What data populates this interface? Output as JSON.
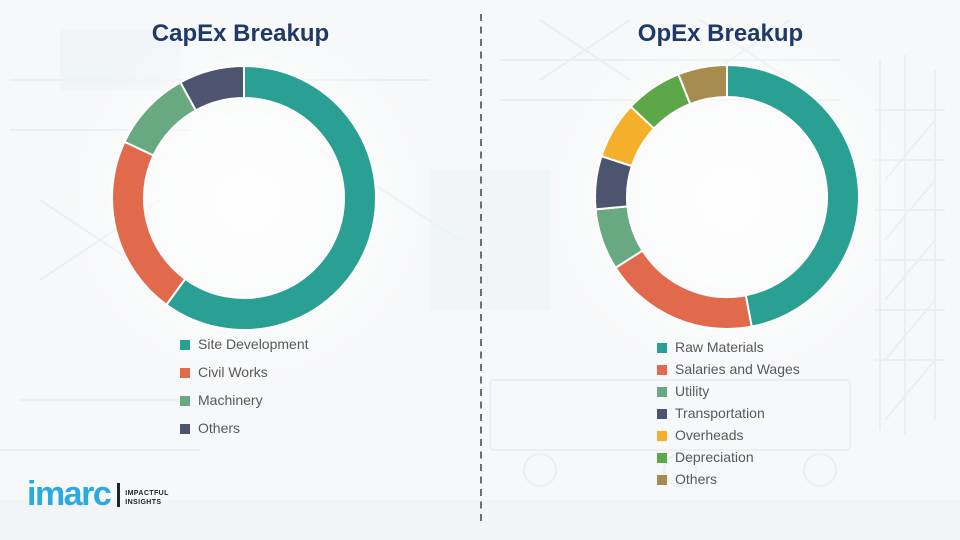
{
  "page": {
    "background_color": "#f7f8f9",
    "divider_color": "#4d4d4d"
  },
  "chart_data": [
    {
      "type": "pie",
      "variant": "donut",
      "title": "CapEx Breakup",
      "labels": [
        "Site Development",
        "Civil Works",
        "Machinery",
        "Others"
      ],
      "values": [
        60,
        22,
        10,
        8
      ],
      "colors": [
        "#2aa094",
        "#e16a4c",
        "#69a981",
        "#4c546f"
      ],
      "legend_position": "bottom-left",
      "start_angle_deg": 0,
      "direction": "clockwise",
      "title_color": "#1f3a68"
    },
    {
      "type": "pie",
      "variant": "donut",
      "title": "OpEx Breakup",
      "labels": [
        "Raw Materials",
        "Salaries and Wages",
        "Utility",
        "Transportation",
        "Overheads",
        "Depreciation",
        "Others"
      ],
      "values": [
        47,
        19,
        7.5,
        6.5,
        7,
        7,
        6
      ],
      "colors": [
        "#2aa094",
        "#e16a4c",
        "#69a981",
        "#4c546f",
        "#f5b02b",
        "#5ea748",
        "#a78c4f"
      ],
      "legend_position": "bottom-left",
      "start_angle_deg": 0,
      "direction": "clockwise",
      "title_color": "#1f3a68"
    }
  ],
  "logo": {
    "brand": "imarc",
    "brand_color": "#29abe2",
    "tagline_line1": "IMPACTFUL",
    "tagline_line2": "INSIGHTS"
  }
}
